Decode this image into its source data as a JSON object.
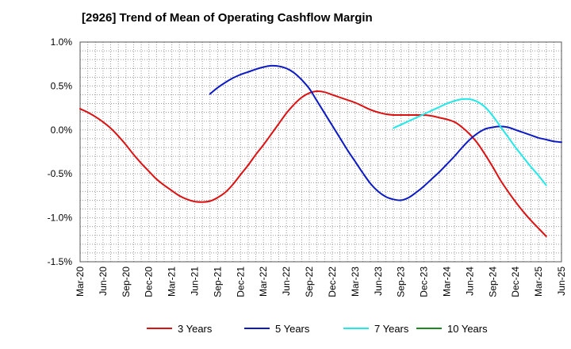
{
  "chart_data": {
    "type": "line",
    "title": "[2926]  Trend of Mean of Operating Cashflow Margin",
    "xlabel": "",
    "ylabel": "",
    "x_tick_labels": [
      "Mar-20",
      "Jun-20",
      "Sep-20",
      "Dec-20",
      "Mar-21",
      "Jun-21",
      "Sep-21",
      "Dec-21",
      "Mar-22",
      "Jun-22",
      "Sep-22",
      "Dec-22",
      "Mar-23",
      "Jun-23",
      "Sep-23",
      "Dec-23",
      "Mar-24",
      "Jun-24",
      "Sep-24",
      "Dec-24",
      "Mar-25",
      "Jun-25"
    ],
    "y_ticks": [
      1.0,
      0.5,
      0.0,
      -0.5,
      -1.0,
      -1.5
    ],
    "y_tick_labels": [
      "1.0%",
      "0.5%",
      "0.0%",
      "-0.5%",
      "-1.0%",
      "-1.5%"
    ],
    "ylim": [
      -1.5,
      1.0
    ],
    "grid": true,
    "legend_position": "bottom",
    "series": [
      {
        "name": "3 Years",
        "color": "#dd1111",
        "points": [
          [
            "Mar-20",
            0.24
          ],
          [
            "Apr-20",
            0.2
          ],
          [
            "May-20",
            0.15
          ],
          [
            "Jun-20",
            0.09
          ],
          [
            "Jul-20",
            0.02
          ],
          [
            "Aug-20",
            -0.07
          ],
          [
            "Sep-20",
            -0.17
          ],
          [
            "Oct-20",
            -0.28
          ],
          [
            "Nov-20",
            -0.38
          ],
          [
            "Dec-20",
            -0.47
          ],
          [
            "Jan-21",
            -0.56
          ],
          [
            "Feb-21",
            -0.63
          ],
          [
            "Mar-21",
            -0.69
          ],
          [
            "Apr-21",
            -0.75
          ],
          [
            "May-21",
            -0.79
          ],
          [
            "Jun-21",
            -0.815
          ],
          [
            "Jul-21",
            -0.82
          ],
          [
            "Aug-21",
            -0.81
          ],
          [
            "Sep-21",
            -0.77
          ],
          [
            "Oct-21",
            -0.71
          ],
          [
            "Nov-21",
            -0.62
          ],
          [
            "Dec-21",
            -0.51
          ],
          [
            "Jan-22",
            -0.4
          ],
          [
            "Feb-22",
            -0.28
          ],
          [
            "Mar-22",
            -0.17
          ],
          [
            "Apr-22",
            -0.05
          ],
          [
            "May-22",
            0.07
          ],
          [
            "Jun-22",
            0.19
          ],
          [
            "Jul-22",
            0.29
          ],
          [
            "Aug-22",
            0.37
          ],
          [
            "Sep-22",
            0.42
          ],
          [
            "Oct-22",
            0.44
          ],
          [
            "Nov-22",
            0.43
          ],
          [
            "Dec-22",
            0.4
          ],
          [
            "Jan-23",
            0.37
          ],
          [
            "Feb-23",
            0.34
          ],
          [
            "Mar-23",
            0.31
          ],
          [
            "Apr-23",
            0.27
          ],
          [
            "May-23",
            0.23
          ],
          [
            "Jun-23",
            0.2
          ],
          [
            "Jul-23",
            0.18
          ],
          [
            "Aug-23",
            0.17
          ],
          [
            "Sep-23",
            0.17
          ],
          [
            "Oct-23",
            0.17
          ],
          [
            "Nov-23",
            0.17
          ],
          [
            "Dec-23",
            0.17
          ],
          [
            "Jan-24",
            0.16
          ],
          [
            "Feb-24",
            0.14
          ],
          [
            "Mar-24",
            0.12
          ],
          [
            "Apr-24",
            0.09
          ],
          [
            "May-24",
            0.03
          ],
          [
            "Jun-24",
            -0.05
          ],
          [
            "Jul-24",
            -0.15
          ],
          [
            "Aug-24",
            -0.28
          ],
          [
            "Sep-24",
            -0.42
          ],
          [
            "Oct-24",
            -0.57
          ],
          [
            "Nov-24",
            -0.7
          ],
          [
            "Dec-24",
            -0.82
          ],
          [
            "Jan-25",
            -0.93
          ],
          [
            "Feb-25",
            -1.03
          ],
          [
            "Mar-25",
            -1.12
          ],
          [
            "Apr-25",
            -1.21
          ]
        ]
      },
      {
        "name": "5 Years",
        "color": "#0c1ac4",
        "points": [
          [
            "Aug-21",
            0.41
          ],
          [
            "Sep-21",
            0.48
          ],
          [
            "Oct-21",
            0.54
          ],
          [
            "Nov-21",
            0.59
          ],
          [
            "Dec-21",
            0.63
          ],
          [
            "Jan-22",
            0.66
          ],
          [
            "Feb-22",
            0.69
          ],
          [
            "Mar-22",
            0.715
          ],
          [
            "Apr-22",
            0.73
          ],
          [
            "May-22",
            0.725
          ],
          [
            "Jun-22",
            0.7
          ],
          [
            "Jul-22",
            0.65
          ],
          [
            "Aug-22",
            0.57
          ],
          [
            "Sep-22",
            0.47
          ],
          [
            "Oct-22",
            0.33
          ],
          [
            "Nov-22",
            0.19
          ],
          [
            "Dec-22",
            0.05
          ],
          [
            "Jan-23",
            -0.09
          ],
          [
            "Feb-23",
            -0.23
          ],
          [
            "Mar-23",
            -0.36
          ],
          [
            "Apr-23",
            -0.49
          ],
          [
            "May-23",
            -0.61
          ],
          [
            "Jun-23",
            -0.7
          ],
          [
            "Jul-23",
            -0.76
          ],
          [
            "Aug-23",
            -0.79
          ],
          [
            "Sep-23",
            -0.8
          ],
          [
            "Oct-23",
            -0.77
          ],
          [
            "Nov-23",
            -0.71
          ],
          [
            "Dec-23",
            -0.64
          ],
          [
            "Jan-24",
            -0.56
          ],
          [
            "Feb-24",
            -0.48
          ],
          [
            "Mar-24",
            -0.39
          ],
          [
            "Apr-24",
            -0.3
          ],
          [
            "May-24",
            -0.2
          ],
          [
            "Jun-24",
            -0.11
          ],
          [
            "Jul-24",
            -0.04
          ],
          [
            "Aug-24",
            0.01
          ],
          [
            "Sep-24",
            0.03
          ],
          [
            "Oct-24",
            0.04
          ],
          [
            "Nov-24",
            0.03
          ],
          [
            "Dec-24",
            0.0
          ],
          [
            "Jan-25",
            -0.03
          ],
          [
            "Feb-25",
            -0.06
          ],
          [
            "Mar-25",
            -0.09
          ],
          [
            "Apr-25",
            -0.11
          ],
          [
            "May-25",
            -0.13
          ],
          [
            "Jun-25",
            -0.14
          ]
        ]
      },
      {
        "name": "7 Years",
        "color": "#22e8e8",
        "points": [
          [
            "Aug-23",
            0.02
          ],
          [
            "Sep-23",
            0.06
          ],
          [
            "Oct-23",
            0.1
          ],
          [
            "Nov-23",
            0.14
          ],
          [
            "Dec-23",
            0.18
          ],
          [
            "Jan-24",
            0.22
          ],
          [
            "Feb-24",
            0.26
          ],
          [
            "Mar-24",
            0.3
          ],
          [
            "Apr-24",
            0.33
          ],
          [
            "May-24",
            0.35
          ],
          [
            "Jun-24",
            0.35
          ],
          [
            "Jul-24",
            0.32
          ],
          [
            "Aug-24",
            0.26
          ],
          [
            "Sep-24",
            0.16
          ],
          [
            "Oct-24",
            0.04
          ],
          [
            "Nov-24",
            -0.08
          ],
          [
            "Dec-24",
            -0.2
          ],
          [
            "Jan-25",
            -0.31
          ],
          [
            "Feb-25",
            -0.42
          ],
          [
            "Mar-25",
            -0.52
          ],
          [
            "Apr-25",
            -0.63
          ]
        ]
      },
      {
        "name": "10 Years",
        "color": "#1a8a1a",
        "points": []
      }
    ]
  }
}
